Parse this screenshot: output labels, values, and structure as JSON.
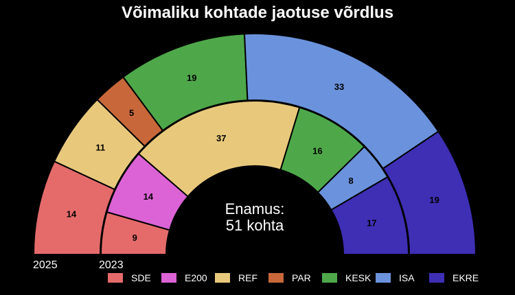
{
  "chart_data": {
    "type": "parliament-donut",
    "title": "Võimaliku kohtade jaotuse võrdlus",
    "total_seats": 101,
    "rings": [
      {
        "name": "2025",
        "segments": [
          {
            "party": "SDE",
            "seats": 14
          },
          {
            "party": "REF",
            "seats": 11
          },
          {
            "party": "PAR",
            "seats": 5
          },
          {
            "party": "KESK",
            "seats": 19
          },
          {
            "party": "ISA",
            "seats": 33
          },
          {
            "party": "EKRE",
            "seats": 19
          }
        ]
      },
      {
        "name": "2023",
        "segments": [
          {
            "party": "SDE",
            "seats": 9
          },
          {
            "party": "E200",
            "seats": 14
          },
          {
            "party": "REF",
            "seats": 37
          },
          {
            "party": "KESK",
            "seats": 16
          },
          {
            "party": "ISA",
            "seats": 8
          },
          {
            "party": "EKRE",
            "seats": 17
          }
        ]
      }
    ],
    "center_text": [
      "Enamus:",
      "51 kohta"
    ],
    "legend": [
      {
        "party": "SDE",
        "color": "#e56b6b"
      },
      {
        "party": "E200",
        "color": "#dc63d6"
      },
      {
        "party": "REF",
        "color": "#e8c97c"
      },
      {
        "party": "PAR",
        "color": "#c8683a"
      },
      {
        "party": "KESK",
        "color": "#4ea84a"
      },
      {
        "party": "ISA",
        "color": "#6b93dd"
      },
      {
        "party": "EKRE",
        "color": "#3e2fb5"
      }
    ],
    "legend_position": "bottom-right"
  }
}
